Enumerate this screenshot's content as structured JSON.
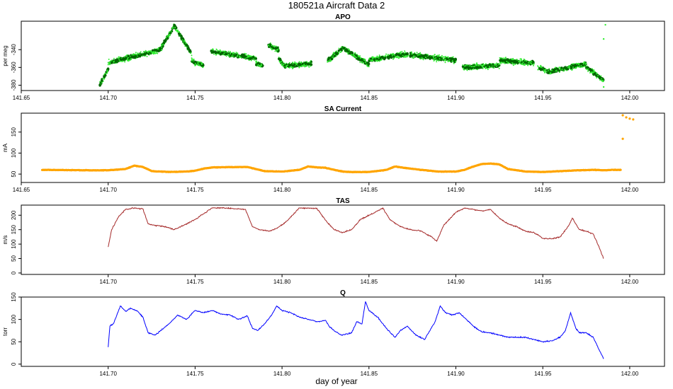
{
  "chart_data": {
    "type": "line",
    "title": "180521a   Aircraft Data 2",
    "xlabel": "day of year",
    "panels": [
      {
        "name": "APO",
        "title": "APO",
        "ylabel": "per meg",
        "style": "scatter",
        "xlim": [
          141.65,
          142.02
        ],
        "ylim": [
          -386,
          -308
        ],
        "xticks": [
          "141.65",
          "141.70",
          "141.75",
          "141.80",
          "141.85",
          "141.90",
          "141.95",
          "142.00"
        ],
        "yticks": [
          "-340",
          "-360",
          "-380"
        ],
        "colors": {
          "light": "#33ee33",
          "dark": "#006600"
        },
        "segments": [
          {
            "x": [
              141.695,
              141.7
            ],
            "y": [
              -380,
              -362
            ]
          },
          {
            "x": [
              141.7,
              141.72
            ],
            "y": [
              -355,
              -345
            ]
          },
          {
            "x": [
              141.72,
              141.73
            ],
            "y": [
              -345,
              -340
            ]
          },
          {
            "x": [
              141.73,
              141.738
            ],
            "y": [
              -340,
              -313
            ]
          },
          {
            "x": [
              141.738,
              141.748
            ],
            "y": [
              -313,
              -345
            ]
          },
          {
            "x": [
              141.748,
              141.755
            ],
            "y": [
              -353,
              -358
            ]
          },
          {
            "x": [
              141.759,
              141.785
            ],
            "y": [
              -342,
              -350
            ]
          },
          {
            "x": [
              141.785,
              141.789
            ],
            "y": [
              -356,
              -358
            ]
          },
          {
            "x": [
              141.792,
              141.798
            ],
            "y": [
              -335,
              -340
            ]
          },
          {
            "x": [
              141.798,
              141.802
            ],
            "y": [
              -350,
              -360
            ]
          },
          {
            "x": [
              141.802,
              141.817
            ],
            "y": [
              -358,
              -356
            ]
          },
          {
            "x": [
              141.826,
              141.835
            ],
            "y": [
              -353,
              -338
            ]
          },
          {
            "x": [
              141.835,
              141.85
            ],
            "y": [
              -338,
              -357
            ]
          },
          {
            "x": [
              141.85,
              141.87
            ],
            "y": [
              -352,
              -345
            ]
          },
          {
            "x": [
              141.87,
              141.9
            ],
            "y": [
              -345,
              -352
            ]
          },
          {
            "x": [
              141.904,
              141.925
            ],
            "y": [
              -360,
              -358
            ]
          },
          {
            "x": [
              141.925,
              141.945
            ],
            "y": [
              -352,
              -355
            ]
          },
          {
            "x": [
              141.947,
              141.955
            ],
            "y": [
              -360,
              -366
            ]
          },
          {
            "x": [
              141.955,
              141.975
            ],
            "y": [
              -364,
              -356
            ]
          },
          {
            "x": [
              141.975,
              141.985
            ],
            "y": [
              -360,
              -374
            ]
          }
        ],
        "extra": [
          {
            "x": 141.986,
            "y": -312
          },
          {
            "x": 141.985,
            "y": -328
          },
          {
            "x": 141.985,
            "y": -382
          }
        ]
      },
      {
        "name": "SA Current",
        "title": "SA Current",
        "ylabel": "mA",
        "style": "scatter",
        "xlim": [
          141.65,
          142.02
        ],
        "ylim": [
          30,
          195
        ],
        "xticks": [
          "141.65",
          "141.70",
          "141.75",
          "141.80",
          "141.85",
          "141.90",
          "141.95",
          "142.00"
        ],
        "yticks": [
          "50",
          "100",
          "150"
        ],
        "colors": {
          "main": "#ffa500"
        },
        "x": [
          141.662,
          141.69,
          141.7,
          141.71,
          141.715,
          141.72,
          141.725,
          141.735,
          141.745,
          141.75,
          141.755,
          141.76,
          141.78,
          141.785,
          141.79,
          141.8,
          141.81,
          141.815,
          141.82,
          141.825,
          141.83,
          141.835,
          141.84,
          141.85,
          141.86,
          141.865,
          141.87,
          141.88,
          141.89,
          141.9,
          141.905,
          141.91,
          141.915,
          141.92,
          141.925,
          141.93,
          141.94,
          141.95,
          141.96,
          141.97,
          141.98,
          141.985,
          141.99,
          141.995
        ],
        "y": [
          60,
          59,
          59,
          62,
          70,
          67,
          57,
          55,
          56,
          58,
          63,
          66,
          67,
          62,
          57,
          56,
          60,
          68,
          66,
          65,
          60,
          56,
          55,
          55,
          60,
          68,
          65,
          60,
          56,
          56,
          60,
          68,
          74,
          75,
          73,
          62,
          56,
          55,
          57,
          59,
          60,
          59,
          60,
          60
        ],
        "extra": [
          {
            "x": 141.996,
            "y": 190
          },
          {
            "x": 141.998,
            "y": 185
          },
          {
            "x": 142.0,
            "y": 182
          },
          {
            "x": 142.002,
            "y": 180
          },
          {
            "x": 141.996,
            "y": 134
          }
        ]
      },
      {
        "name": "TAS",
        "title": "TAS",
        "ylabel": "m/s",
        "style": "line",
        "xlim": [
          141.65,
          142.02
        ],
        "ylim": [
          -5,
          235
        ],
        "xticks": [
          "141.70",
          "141.75",
          "141.80",
          "141.85",
          "141.90",
          "141.95",
          "142.00"
        ],
        "yticks": [
          "0",
          "50",
          "100",
          "150",
          "200"
        ],
        "colors": {
          "main": "#a52a2a"
        },
        "x": [
          141.7,
          141.702,
          141.706,
          141.71,
          141.715,
          141.72,
          141.723,
          141.727,
          141.733,
          141.738,
          141.745,
          141.75,
          141.76,
          141.77,
          141.779,
          141.783,
          141.787,
          141.793,
          141.797,
          141.802,
          141.81,
          141.82,
          141.826,
          141.83,
          141.835,
          141.84,
          141.845,
          141.852,
          141.858,
          141.862,
          141.868,
          141.874,
          141.88,
          141.886,
          141.889,
          141.893,
          141.9,
          141.905,
          141.91,
          141.915,
          141.92,
          141.925,
          141.93,
          141.935,
          141.94,
          141.945,
          141.95,
          141.955,
          141.96,
          141.965,
          141.967,
          141.971,
          141.975,
          141.979,
          141.982,
          141.985
        ],
        "y": [
          90,
          150,
          195,
          220,
          225,
          222,
          170,
          165,
          160,
          150,
          170,
          185,
          226,
          224,
          220,
          160,
          150,
          145,
          155,
          175,
          225,
          224,
          175,
          150,
          140,
          150,
          185,
          205,
          225,
          185,
          160,
          150,
          145,
          125,
          110,
          165,
          210,
          225,
          220,
          215,
          220,
          190,
          170,
          160,
          145,
          140,
          120,
          118,
          125,
          165,
          190,
          150,
          145,
          135,
          95,
          50
        ]
      },
      {
        "name": "Q",
        "title": "Q",
        "ylabel": "torr",
        "style": "line",
        "xlim": [
          141.65,
          142.02
        ],
        "ylim": [
          -5,
          150
        ],
        "xticks": [
          "141.70",
          "141.75",
          "141.80",
          "141.85",
          "141.90",
          "141.95",
          "142.00"
        ],
        "yticks": [
          "0",
          "50",
          "100",
          "150"
        ],
        "colors": {
          "main": "#0000ff"
        },
        "x": [
          141.7,
          141.701,
          141.703,
          141.705,
          141.707,
          141.71,
          141.713,
          141.717,
          141.72,
          141.723,
          141.727,
          141.735,
          141.74,
          141.745,
          141.75,
          141.755,
          141.76,
          141.765,
          141.77,
          141.775,
          141.78,
          141.783,
          141.786,
          141.79,
          141.794,
          141.797,
          141.8,
          141.805,
          141.81,
          141.815,
          141.82,
          141.825,
          141.827,
          141.83,
          141.834,
          141.84,
          141.843,
          141.846,
          141.848,
          141.85,
          141.855,
          141.86,
          141.865,
          141.868,
          141.872,
          141.877,
          141.882,
          141.888,
          141.891,
          141.894,
          141.898,
          141.902,
          141.906,
          141.91,
          141.915,
          141.92,
          141.925,
          141.93,
          141.94,
          141.95,
          141.955,
          141.96,
          141.963,
          141.966,
          141.969,
          141.971,
          141.975,
          141.979,
          141.982,
          141.985
        ],
        "y": [
          38,
          85,
          90,
          110,
          130,
          118,
          125,
          118,
          105,
          70,
          65,
          90,
          110,
          100,
          120,
          115,
          120,
          112,
          110,
          100,
          108,
          80,
          75,
          90,
          110,
          130,
          120,
          115,
          105,
          100,
          95,
          98,
          85,
          75,
          65,
          70,
          95,
          90,
          140,
          120,
          105,
          80,
          60,
          75,
          85,
          65,
          55,
          95,
          130,
          115,
          110,
          115,
          100,
          85,
          72,
          70,
          65,
          60,
          60,
          50,
          52,
          60,
          75,
          115,
          80,
          70,
          70,
          60,
          35,
          12
        ]
      }
    ]
  }
}
